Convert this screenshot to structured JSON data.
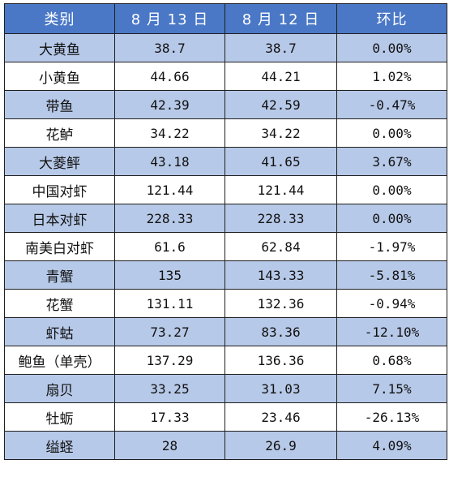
{
  "table": {
    "headers": [
      "类别",
      "8 月 13 日",
      "8 月 12 日",
      "环比"
    ],
    "rows": [
      [
        "大黄鱼",
        "38.7",
        "38.7",
        "0.00%"
      ],
      [
        "小黄鱼",
        "44.66",
        "44.21",
        "1.02%"
      ],
      [
        "带鱼",
        "42.39",
        "42.59",
        "-0.47%"
      ],
      [
        "花鲈",
        "34.22",
        "34.22",
        "0.00%"
      ],
      [
        "大菱鲆",
        "43.18",
        "41.65",
        "3.67%"
      ],
      [
        "中国对虾",
        "121.44",
        "121.44",
        "0.00%"
      ],
      [
        "日本对虾",
        "228.33",
        "228.33",
        "0.00%"
      ],
      [
        "南美白对虾",
        "61.6",
        "62.84",
        "-1.97%"
      ],
      [
        "青蟹",
        "135",
        "143.33",
        "-5.81%"
      ],
      [
        "花蟹",
        "131.11",
        "132.36",
        "-0.94%"
      ],
      [
        "虾蛄",
        "73.27",
        "83.36",
        "-12.10%"
      ],
      [
        "鲍鱼（单壳）",
        "137.29",
        "136.36",
        "0.68%"
      ],
      [
        "扇贝",
        "33.25",
        "31.03",
        "7.15%"
      ],
      [
        "牡蛎",
        "17.33",
        "23.46",
        "-26.13%"
      ],
      [
        "缢蛏",
        "28",
        "26.9",
        "4.09%"
      ]
    ]
  },
  "colors": {
    "header_bg": "#4a78c6",
    "header_text": "#ffffff",
    "shaded_row_bg": "#b7c9e8",
    "plain_row_bg": "#ffffff",
    "border": "#1f1f1f"
  }
}
